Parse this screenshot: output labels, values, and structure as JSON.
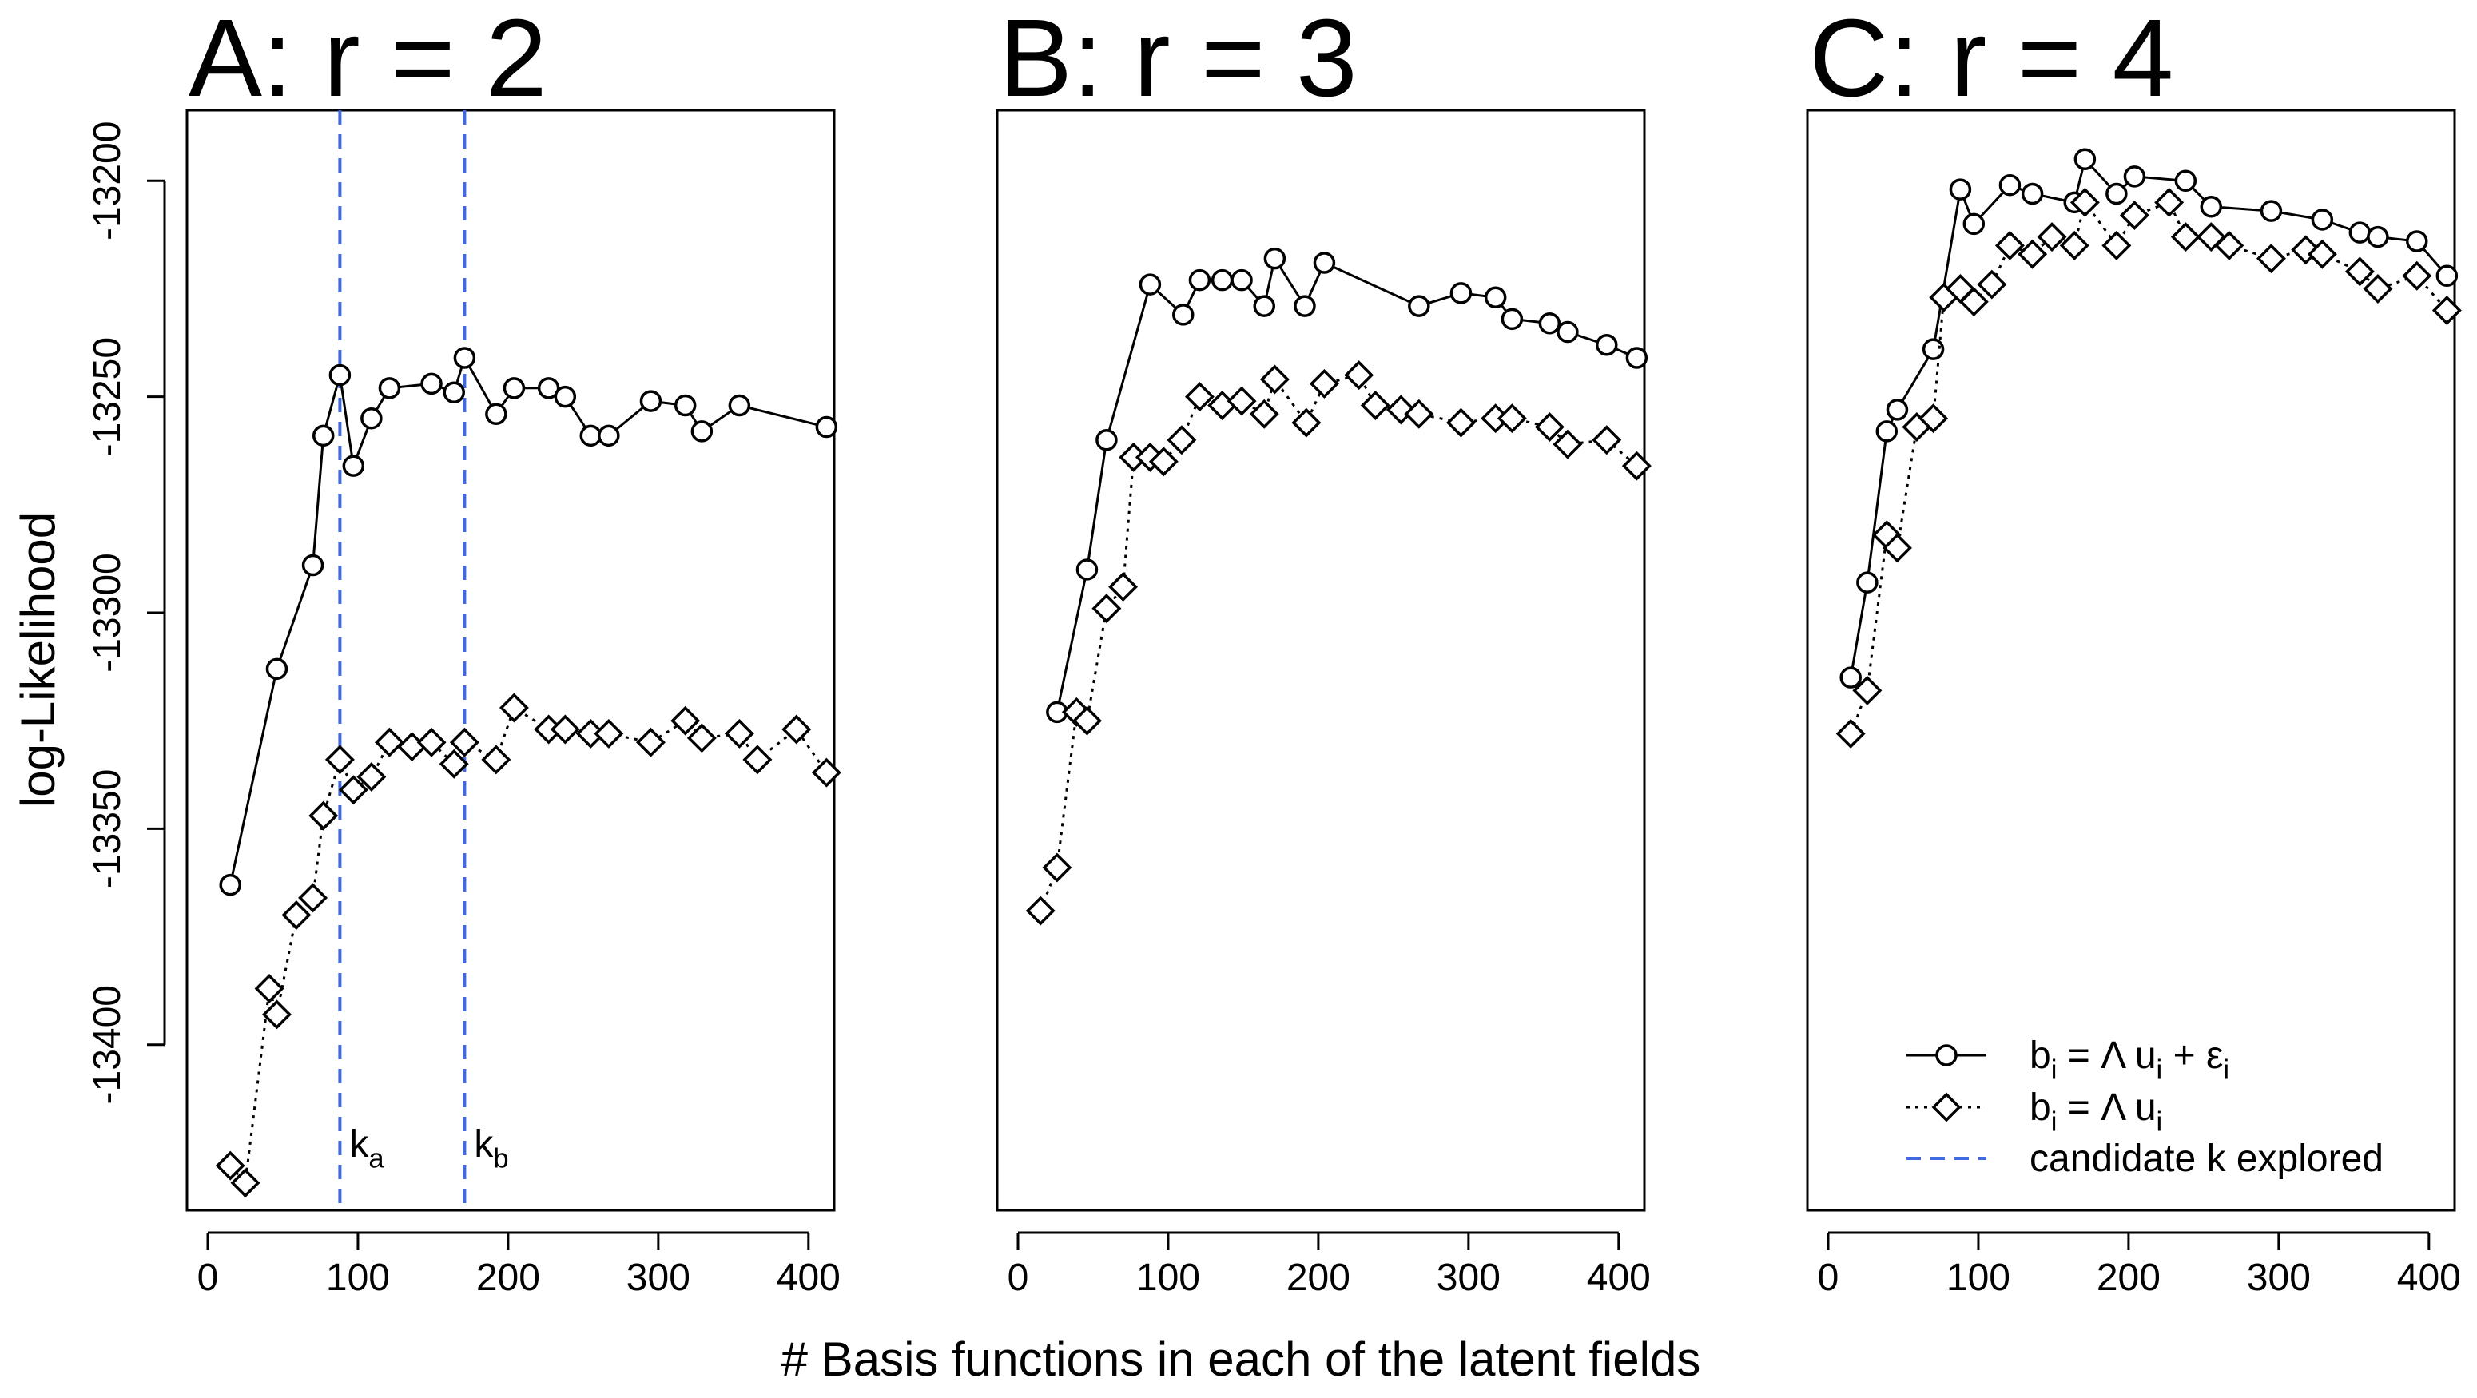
{
  "figure": {
    "ylabel": "log-Likelihood",
    "xlabel": "# Basis functions in each of the latent fields"
  },
  "legend": {
    "entries": [
      {
        "key": "with_eps",
        "base": "b",
        "sub": "i",
        "mid": " = Λ u",
        "sub2": "i",
        "tail": " + ε",
        "sub3": "i"
      },
      {
        "key": "no_eps",
        "base": "b",
        "sub": "i",
        "mid": " = Λ u",
        "sub2": "i",
        "tail": "",
        "sub3": ""
      },
      {
        "key": "candidate",
        "text": "candidate k explored"
      }
    ]
  },
  "annotations": {
    "ka": {
      "base": "k",
      "sub": "a"
    },
    "kb": {
      "base": "k",
      "sub": "b"
    }
  },
  "colors": {
    "candidate_line": "#4169E1",
    "series": "#000000"
  },
  "chart_data": [
    {
      "type": "line",
      "panel_title": "A: r = 2",
      "xlim": [
        0,
        415
      ],
      "ylim": [
        -13435,
        -13187
      ],
      "xticks": [
        0,
        100,
        200,
        300,
        400
      ],
      "yticks": [
        -13200,
        -13250,
        -13300,
        -13350,
        -13400
      ],
      "vlines": [
        {
          "x": 88,
          "label": "ka"
        },
        {
          "x": 171,
          "label": "kb"
        }
      ],
      "series": [
        {
          "key": "with_eps",
          "marker": "circle",
          "dash": "solid",
          "x": [
            15,
            46,
            70,
            77,
            88,
            97,
            109,
            121,
            149,
            164,
            171,
            192,
            204,
            227,
            238,
            255,
            267,
            295,
            318,
            329,
            354,
            412
          ],
          "y": [
            -13363,
            -13313,
            -13289,
            -13259,
            -13245,
            -13266,
            -13255,
            -13248,
            -13247,
            -13249,
            -13241,
            -13254,
            -13248,
            -13248,
            -13250,
            -13259,
            -13259,
            -13251,
            -13252,
            -13258,
            -13252,
            -13257
          ]
        },
        {
          "key": "no_eps",
          "marker": "diamond",
          "dash": "dotted",
          "x": [
            15,
            25,
            41,
            46,
            59,
            70,
            77,
            88,
            97,
            109,
            121,
            136,
            149,
            164,
            171,
            192,
            204,
            227,
            238,
            255,
            267,
            295,
            318,
            329,
            354,
            366,
            392,
            412
          ],
          "y": [
            -13428,
            -13432,
            -13387,
            -13393,
            -13370,
            -13366,
            -13347,
            -13334,
            -13341,
            -13338,
            -13330,
            -13331,
            -13330,
            -13335,
            -13330,
            -13334,
            -13322,
            -13327,
            -13327,
            -13328,
            -13328,
            -13330,
            -13325,
            -13329,
            -13328,
            -13334,
            -13327,
            -13337
          ]
        }
      ]
    },
    {
      "type": "line",
      "panel_title": "B: r = 3",
      "xlim": [
        0,
        415
      ],
      "ylim": [
        -13435,
        -13187
      ],
      "xticks": [
        0,
        100,
        200,
        300,
        400
      ],
      "series": [
        {
          "key": "with_eps",
          "marker": "circle",
          "dash": "solid",
          "x": [
            26,
            46,
            59,
            88,
            110,
            121,
            136,
            149,
            164,
            171,
            191,
            204,
            267,
            295,
            318,
            329,
            354,
            366,
            392,
            412
          ],
          "y": [
            -13323,
            -13290,
            -13260,
            -13224,
            -13231,
            -13223,
            -13223,
            -13223,
            -13229,
            -13218,
            -13229,
            -13219,
            -13229,
            -13226,
            -13227,
            -13232,
            -13233,
            -13235,
            -13238,
            -13241
          ]
        },
        {
          "key": "no_eps",
          "marker": "diamond",
          "dash": "dotted",
          "x": [
            15,
            26,
            39,
            46,
            59,
            70,
            77,
            88,
            97,
            109,
            121,
            136,
            149,
            164,
            171,
            192,
            204,
            227,
            238,
            255,
            267,
            295,
            318,
            329,
            354,
            366,
            392,
            412
          ],
          "y": [
            -13369,
            -13359,
            -13323,
            -13325,
            -13299,
            -13294,
            -13264,
            -13264,
            -13265,
            -13260,
            -13250,
            -13252,
            -13251,
            -13254,
            -13246,
            -13256,
            -13247,
            -13245,
            -13252,
            -13253,
            -13254,
            -13256,
            -13255,
            -13255,
            -13257,
            -13261,
            -13260,
            -13266
          ]
        }
      ]
    },
    {
      "type": "line",
      "panel_title": "C: r = 4",
      "xlim": [
        0,
        415
      ],
      "ylim": [
        -13435,
        -13187
      ],
      "xticks": [
        0,
        100,
        200,
        300,
        400
      ],
      "series": [
        {
          "key": "with_eps",
          "marker": "circle",
          "dash": "solid",
          "x": [
            15,
            26,
            39,
            46,
            70,
            88,
            97,
            121,
            136,
            164,
            171,
            192,
            204,
            238,
            255,
            295,
            329,
            354,
            366,
            392,
            412
          ],
          "y": [
            -13315,
            -13293,
            -13258,
            -13253,
            -13239,
            -13202,
            -13210,
            -13201,
            -13203,
            -13205,
            -13195,
            -13203,
            -13199,
            -13200,
            -13206,
            -13207,
            -13209,
            -13212,
            -13213,
            -13214,
            -13222
          ]
        },
        {
          "key": "no_eps",
          "marker": "diamond",
          "dash": "dotted",
          "x": [
            15,
            26,
            39,
            46,
            59,
            70,
            77,
            88,
            97,
            109,
            121,
            136,
            149,
            164,
            171,
            192,
            204,
            227,
            238,
            255,
            267,
            295,
            318,
            329,
            354,
            366,
            392,
            412
          ],
          "y": [
            -13328,
            -13318,
            -13282,
            -13285,
            -13257,
            -13255,
            -13227,
            -13225,
            -13228,
            -13224,
            -13215,
            -13217,
            -13213,
            -13215,
            -13205,
            -13215,
            -13208,
            -13205,
            -13213,
            -13213,
            -13215,
            -13218,
            -13216,
            -13217,
            -13221,
            -13225,
            -13222,
            -13230
          ]
        }
      ]
    }
  ]
}
